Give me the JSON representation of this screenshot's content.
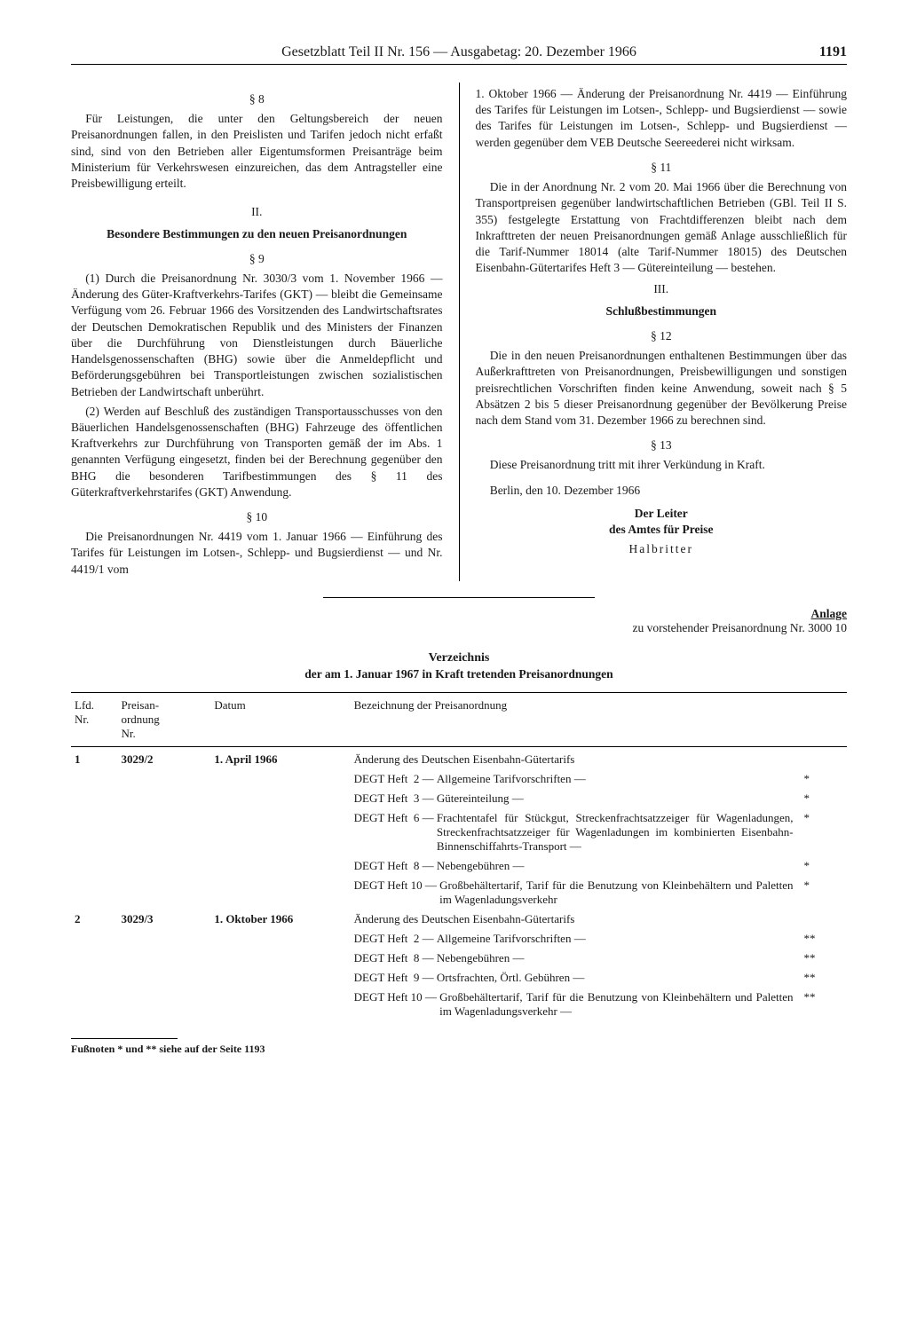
{
  "header": {
    "title": "Gesetzblatt Teil II Nr. 156 — Ausgabetag: 20. Dezember 1966",
    "page": "1191"
  },
  "left": {
    "s8_num": "§ 8",
    "s8_text": "Für Leistungen, die unter den Geltungsbereich der neuen Preisanordnungen fallen, in den Preislisten und Tarifen jedoch nicht erfaßt sind, sind von den Betrieben aller Eigentumsformen Preisanträge beim Ministerium für Verkehrswesen einzureichen, das dem Antragsteller eine Preisbewilligung erteilt.",
    "roman2": "II.",
    "heading2": "Besondere Bestimmungen zu den neuen Preisanordnungen",
    "s9_num": "§ 9",
    "s9_p1": "(1) Durch die Preisanordnung Nr. 3030/3 vom 1. November 1966 — Änderung des Güter-Kraftverkehrs-Tarifes (GKT) — bleibt die Gemeinsame Verfügung vom 26. Februar 1966 des Vorsitzenden des Landwirtschaftsrates der Deutschen Demokratischen Republik und des Ministers der Finanzen über die Durchführung von Dienstleistungen durch Bäuerliche Handelsgenossenschaften (BHG) sowie über die Anmeldepflicht und Beförderungsgebühren bei Transportleistungen zwischen sozialistischen Betrieben der Landwirtschaft unberührt.",
    "s9_p2": "(2) Werden auf Beschluß des zuständigen Transportausschusses von den Bäuerlichen Handelsgenossenschaften (BHG) Fahrzeuge des öffentlichen Kraftverkehrs zur Durchführung von Transporten gemäß der im Abs. 1 genannten Verfügung eingesetzt, finden bei der Berechnung gegenüber den BHG die besonderen Tarifbestimmungen des § 11 des Güterkraftverkehrstarifes (GKT) Anwendung.",
    "s10_num": "§ 10",
    "s10_text": "Die Preisanordnungen Nr. 4419 vom 1. Januar 1966 — Einführung des Tarifes für Leistungen im Lotsen-, Schlepp- und Bugsierdienst — und Nr. 4419/1 vom"
  },
  "right": {
    "cont": "1. Oktober 1966 — Änderung der Preisanordnung Nr. 4419 — Einführung des Tarifes für Leistungen im Lotsen-, Schlepp- und Bugsierdienst — sowie des Tarifes für Leistungen im Lotsen-, Schlepp- und Bugsierdienst — werden gegenüber dem VEB Deutsche Seereederei nicht wirksam.",
    "s11_num": "§ 11",
    "s11_text": "Die in der Anordnung Nr. 2 vom 20. Mai 1966 über die Berechnung von Transportpreisen gegenüber landwirtschaftlichen Betrieben (GBl. Teil II S. 355) festgelegte Erstattung von Frachtdifferenzen bleibt nach dem Inkrafttreten der neuen Preisanordnungen gemäß Anlage ausschließlich für die Tarif-Nummer 18014 (alte Tarif-Nummer 18015) des Deutschen Eisenbahn-Gütertarifes Heft 3 — Gütereinteilung — bestehen.",
    "roman3": "III.",
    "heading3": "Schlußbestimmungen",
    "s12_num": "§ 12",
    "s12_text": "Die in den neuen Preisanordnungen enthaltenen Bestimmungen über das Außerkrafttreten von Preisanordnungen, Preisbewilligungen und sonstigen preisrechtlichen Vorschriften finden keine Anwendung, soweit nach § 5 Absätzen 2 bis 5 dieser Preisanordnung gegenüber der Bevölkerung Preise nach dem Stand vom 31. Dezember 1966 zu berechnen sind.",
    "s13_num": "§ 13",
    "s13_text": "Diese Preisanordnung tritt mit ihrer Verkündung in Kraft.",
    "place_date": "Berlin, den 10. Dezember 1966",
    "sig1": "Der Leiter",
    "sig2": "des Amtes für Preise",
    "sig3": "Halbritter"
  },
  "anlage": {
    "label": "Anlage",
    "sub": "zu vorstehender Preisanordnung Nr. 3000 10"
  },
  "verzeichnis": {
    "title": "Verzeichnis",
    "sub": "der am 1. Januar 1967 in Kraft tretenden Preisanordnungen"
  },
  "table": {
    "headers": {
      "lfd": "Lfd.\nNr.",
      "po": "Preisan-\nordnung\nNr.",
      "datum": "Datum",
      "bez": "Bezeichnung der Preisanordnung"
    },
    "rows": [
      {
        "lfd": "1",
        "po": "3029/2",
        "datum": "1. April 1966",
        "title": "Änderung des Deutschen Eisenbahn-Gütertarifs",
        "lines": [
          {
            "label": "DEGT Heft  2 — ",
            "body": "Allgemeine Tarifvorschriften —",
            "mark": "*"
          },
          {
            "label": "DEGT Heft  3 — ",
            "body": "Gütereinteilung —",
            "mark": "*"
          },
          {
            "label": "DEGT Heft  6 — ",
            "body": "Frachtentafel für Stückgut, Streckenfrachtsatzzeiger für Wagenladungen, Streckenfrachtsatzzeiger für Wagenladungen im kombinierten Eisenbahn-Binnenschiffahrts-Transport —",
            "mark": "*"
          },
          {
            "label": "DEGT Heft  8 — ",
            "body": "Nebengebühren —",
            "mark": "*"
          },
          {
            "label": "DEGT Heft 10 — ",
            "body": "Großbehältertarif, Tarif für die Benutzung von Kleinbehältern und Paletten im Wagenladungsverkehr",
            "mark": "*"
          }
        ]
      },
      {
        "lfd": "2",
        "po": "3029/3",
        "datum": "1. Oktober 1966",
        "title": "Änderung des Deutschen Eisenbahn-Gütertarifs",
        "lines": [
          {
            "label": "DEGT Heft  2 — ",
            "body": "Allgemeine Tarifvorschriften —",
            "mark": "**"
          },
          {
            "label": "DEGT Heft  8 — ",
            "body": "Nebengebühren —",
            "mark": "**"
          },
          {
            "label": "DEGT Heft  9 — ",
            "body": "Ortsfrachten, Örtl. Gebühren —",
            "mark": "**"
          },
          {
            "label": "DEGT Heft 10 — ",
            "body": "Großbehältertarif, Tarif für die Benutzung von Kleinbehältern und Paletten im Wagenladungsverkehr —",
            "mark": "**"
          }
        ]
      }
    ]
  },
  "footnote": "Fußnoten * und ** siehe auf der Seite 1193"
}
